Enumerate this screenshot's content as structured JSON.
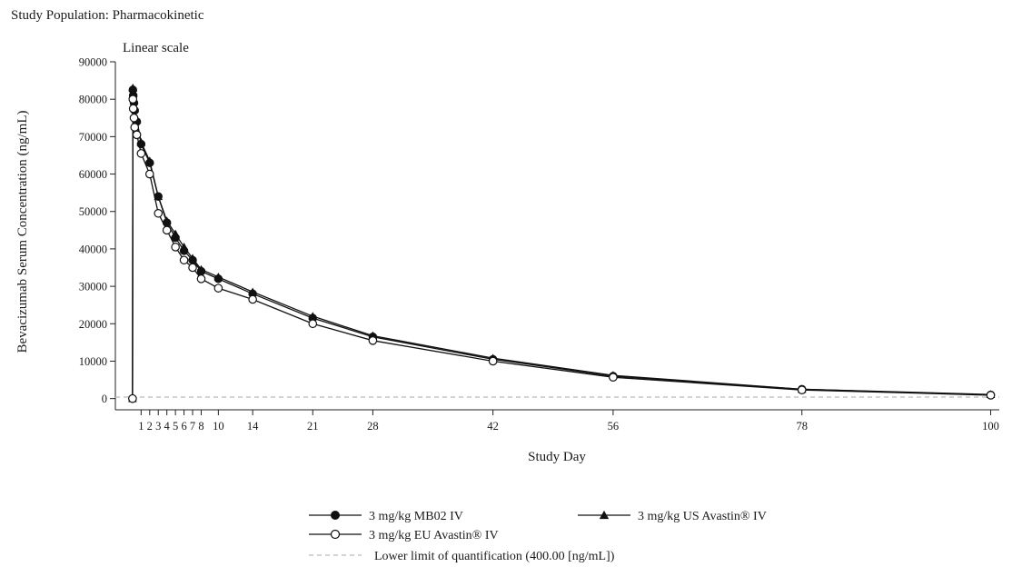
{
  "header": {
    "population_label": "Study Population: Pharmacokinetic"
  },
  "chart_data": {
    "type": "line",
    "scale_label": "Linear scale",
    "xlabel": "Study Day",
    "ylabel": "Bevacizumab Serum Concentration (ng/mL)",
    "xlim": [
      -2,
      101
    ],
    "ylim": [
      -3000,
      90000
    ],
    "x_ticks": [
      1,
      2,
      3,
      4,
      5,
      6,
      7,
      8,
      10,
      14,
      21,
      28,
      42,
      56,
      78,
      100
    ],
    "y_ticks": [
      0,
      10000,
      20000,
      30000,
      40000,
      50000,
      60000,
      70000,
      80000,
      90000
    ],
    "x": [
      0,
      0.04,
      0.08,
      0.17,
      0.25,
      0.5,
      1,
      2,
      3,
      4,
      5,
      6,
      7,
      8,
      10,
      14,
      21,
      28,
      42,
      56,
      78,
      100
    ],
    "series": [
      {
        "name": "3 mg/kg MB02 IV",
        "marker": "circle-filled",
        "color": "#111111",
        "values": [
          0,
          82500,
          81000,
          79000,
          77000,
          74000,
          68000,
          63000,
          54000,
          47000,
          43000,
          39500,
          37000,
          34000,
          32000,
          28000,
          21500,
          16500,
          10500,
          6000,
          2500,
          1000
        ]
      },
      {
        "name": "3 mg/kg US Avastin® IV",
        "marker": "triangle-filled",
        "color": "#111111",
        "values": [
          0,
          83000,
          81500,
          79500,
          77500,
          74500,
          68500,
          63500,
          54000,
          47500,
          44000,
          40500,
          37500,
          34500,
          32500,
          28500,
          22000,
          16800,
          10800,
          6200,
          2500,
          1100
        ]
      },
      {
        "name": "3 mg/kg EU Avastin® IV",
        "marker": "circle-open",
        "color": "#111111",
        "values": [
          0,
          80000,
          77500,
          75000,
          72500,
          70500,
          65500,
          60000,
          49500,
          45000,
          40500,
          37000,
          35000,
          32000,
          29500,
          26500,
          20000,
          15500,
          10000,
          5700,
          2300,
          900
        ]
      }
    ],
    "reference_line": {
      "label": "Lower limit of quantification (400.00 [ng/mL])",
      "value": 400,
      "style": "dashed",
      "color": "#bbbbbb"
    },
    "legend_position": "bottom",
    "grid": false
  }
}
